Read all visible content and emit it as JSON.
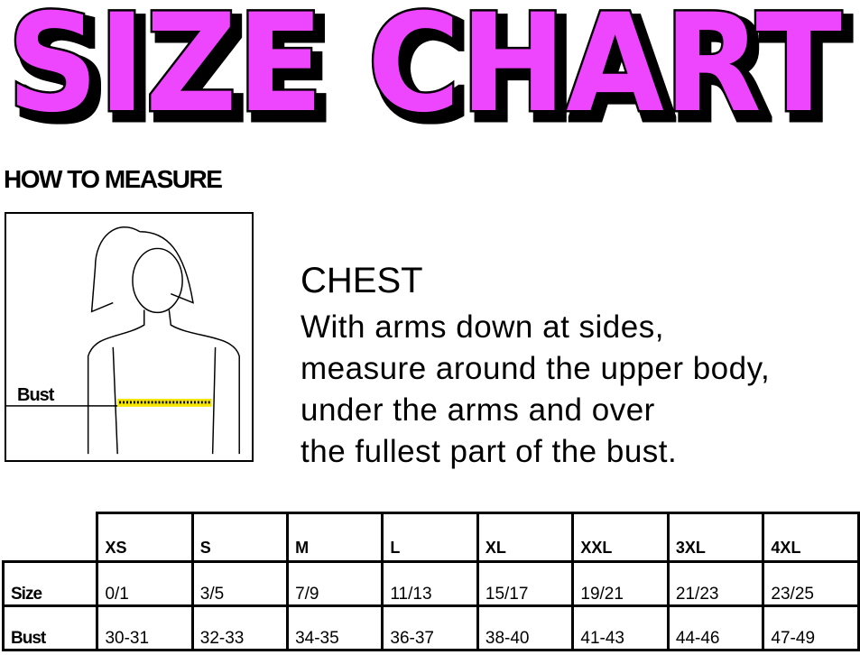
{
  "title": "SIZE CHART",
  "title_color": "#ee44ff",
  "how_to_measure": "HOW TO MEASURE",
  "figure": {
    "bust_label": "Bust",
    "tape_color": "#f5e600"
  },
  "chest": {
    "heading": "CHEST",
    "lines": [
      "With arms down at sides,",
      "measure around the upper body,",
      "under the arms and over",
      "the fullest part of the bust."
    ]
  },
  "table": {
    "columns": [
      "XS",
      "S",
      "M",
      "L",
      "XL",
      "XXL",
      "3XL",
      "4XL"
    ],
    "rows": [
      {
        "label": "Size",
        "values": [
          "0/1",
          "3/5",
          "7/9",
          "11/13",
          "15/17",
          "19/21",
          "21/23",
          "23/25"
        ]
      },
      {
        "label": "Bust",
        "values": [
          "30-31",
          "32-33",
          "34-35",
          "36-37",
          "38-40",
          "41-43",
          "44-46",
          "47-49"
        ]
      }
    ]
  }
}
